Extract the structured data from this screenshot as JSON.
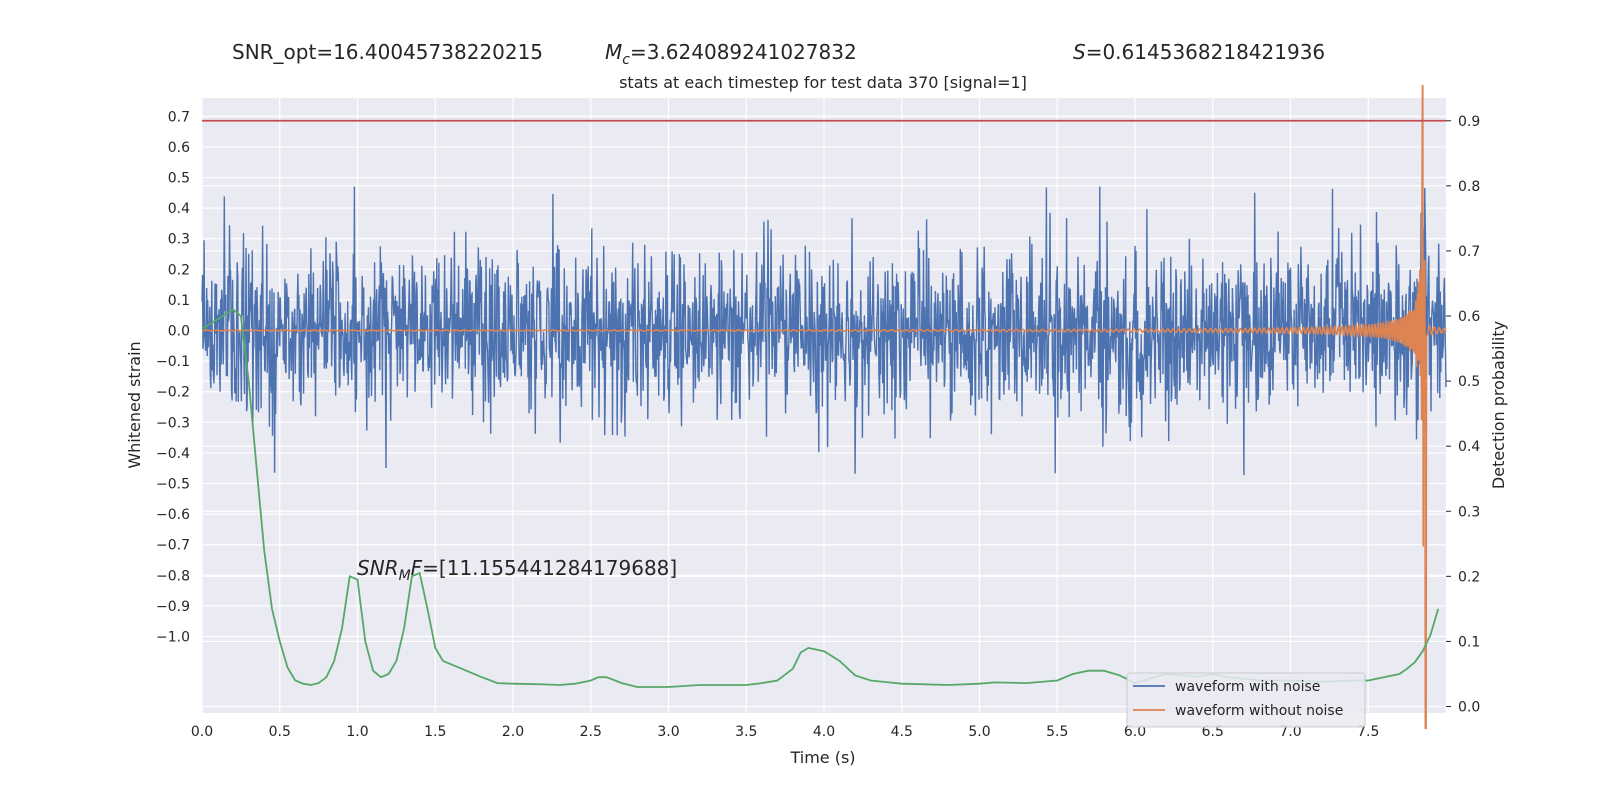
{
  "chart_data": {
    "type": "line",
    "title": "stats at each timestep for test data 370 [signal=1]",
    "header": {
      "snr_opt": "SNR_opt=16.40045738220215",
      "mc_sym": "M",
      "mc_sub": "c",
      "mc_val": "=3.624089241027832",
      "s_sym": "S",
      "s_val": "=0.6145368218421936",
      "snrmf_a": "SNR",
      "snrmf_sub": "M",
      "snrmf_b": "F",
      "snrmf_val": "=[11.155441284179688]"
    },
    "xlabel": "Time (s)",
    "ylabel_left": "Whitened strain",
    "ylabel_right": "Detection probability",
    "xlim": [
      0.0,
      8.0
    ],
    "ylim_left": [
      -1.25,
      0.76
    ],
    "ylim_right": [
      -0.01,
      0.935
    ],
    "x_ticks": [
      "0.0",
      "0.5",
      "1.0",
      "1.5",
      "2.0",
      "2.5",
      "3.0",
      "3.5",
      "4.0",
      "4.5",
      "5.0",
      "5.5",
      "6.0",
      "6.5",
      "7.0",
      "7.5"
    ],
    "y_ticks_left": [
      "0.7",
      "0.6",
      "0.5",
      "0.4",
      "0.3",
      "0.2",
      "0.1",
      "0.0",
      "−0.1",
      "−0.2",
      "−0.3",
      "−0.4",
      "−0.5",
      "−0.6",
      "−0.7",
      "−0.8",
      "−0.9",
      "−1.0"
    ],
    "y_ticks_right": [
      "0.9",
      "0.8",
      "0.7",
      "0.6",
      "0.5",
      "0.4",
      "0.3",
      "0.2",
      "0.1",
      "0.0"
    ],
    "grid": true,
    "legend_position": "lower-right",
    "threshold": {
      "value": 0.9,
      "axis": "right",
      "color": "#c44e52"
    },
    "series": [
      {
        "name": "waveform with noise",
        "color": "#4c72b0",
        "axis": "left",
        "description": "noise band roughly ±0.25 with peaks to ±0.45"
      },
      {
        "name": "waveform without noise",
        "color": "#dd8452",
        "axis": "left",
        "description": "chirp signal growing to ~0.8 near t=7.85 then dropping to ~-1.3"
      },
      {
        "name": "",
        "color": "#55a868",
        "axis": "right",
        "x": [
          0.0,
          0.1,
          0.2,
          0.25,
          0.3,
          0.35,
          0.4,
          0.45,
          0.5,
          0.55,
          0.6,
          0.65,
          0.7,
          0.75,
          0.8,
          0.85,
          0.9,
          0.95,
          1.0,
          1.05,
          1.1,
          1.15,
          1.2,
          1.25,
          1.3,
          1.35,
          1.4,
          1.45,
          1.5,
          1.55,
          1.6,
          1.65,
          1.7,
          1.8,
          1.9,
          2.0,
          2.2,
          2.3,
          2.4,
          2.5,
          2.55,
          2.6,
          2.7,
          2.8,
          3.0,
          3.2,
          3.5,
          3.6,
          3.7,
          3.8,
          3.85,
          3.9,
          4.0,
          4.1,
          4.2,
          4.3,
          4.5,
          4.8,
          5.0,
          5.1,
          5.3,
          5.5,
          5.6,
          5.7,
          5.8,
          5.9,
          6.0,
          6.1,
          6.2,
          6.3,
          6.4,
          6.5,
          6.6,
          6.8,
          7.0,
          7.2,
          7.4,
          7.5,
          7.6,
          7.7,
          7.75,
          7.8,
          7.85,
          7.9,
          7.95
        ],
        "values": [
          0.58,
          0.595,
          0.61,
          0.6,
          0.5,
          0.37,
          0.24,
          0.15,
          0.1,
          0.06,
          0.04,
          0.035,
          0.033,
          0.036,
          0.045,
          0.07,
          0.12,
          0.2,
          0.195,
          0.1,
          0.055,
          0.045,
          0.05,
          0.07,
          0.12,
          0.2,
          0.205,
          0.15,
          0.09,
          0.07,
          0.065,
          0.06,
          0.055,
          0.045,
          0.036,
          0.035,
          0.034,
          0.033,
          0.035,
          0.04,
          0.045,
          0.045,
          0.036,
          0.03,
          0.03,
          0.033,
          0.033,
          0.036,
          0.04,
          0.058,
          0.083,
          0.09,
          0.085,
          0.07,
          0.048,
          0.04,
          0.035,
          0.033,
          0.035,
          0.037,
          0.036,
          0.04,
          0.05,
          0.055,
          0.055,
          0.048,
          0.036,
          0.043,
          0.05,
          0.048,
          0.046,
          0.05,
          0.045,
          0.04,
          0.04,
          0.038,
          0.04,
          0.04,
          0.045,
          0.05,
          0.058,
          0.068,
          0.085,
          0.11,
          0.15
        ]
      }
    ]
  }
}
